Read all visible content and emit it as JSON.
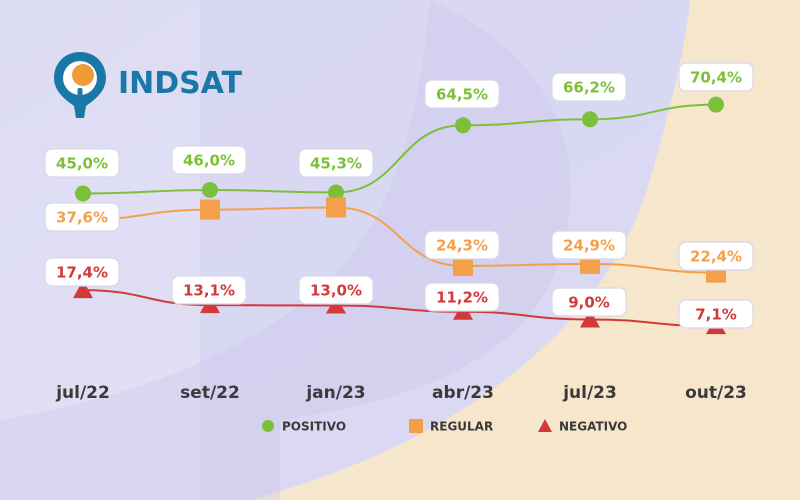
{
  "brand": {
    "name": "INDSAT",
    "logo_icon": "map-pin-icon"
  },
  "colors": {
    "positivo": "#7cc03a",
    "regular": "#f4a04a",
    "negativo": "#d23a3a",
    "tick_text": "#3a3a3a",
    "brand": "#1a78a8"
  },
  "chart_data": {
    "type": "line",
    "title": "",
    "xlabel": "",
    "ylabel": "",
    "categories": [
      "jul/22",
      "set/22",
      "jan/23",
      "abr/23",
      "jul/23",
      "out/23"
    ],
    "series": [
      {
        "name": "POSITIVO",
        "marker": "circle",
        "values": [
          45.0,
          46.0,
          45.3,
          64.5,
          66.2,
          70.4
        ],
        "labels": [
          "45,0%",
          "46,0%",
          "45,3%",
          "64,5%",
          "66,2%",
          "70,4%"
        ]
      },
      {
        "name": "REGULAR",
        "marker": "square",
        "values": [
          37.6,
          40.4,
          41.0,
          24.3,
          24.9,
          22.4
        ],
        "labels": [
          "37,6%",
          "",
          "",
          "24,3%",
          "24,9%",
          "22,4%"
        ]
      },
      {
        "name": "NEGATIVO",
        "marker": "triangle",
        "values": [
          17.4,
          13.1,
          13.0,
          11.2,
          9.0,
          7.1
        ],
        "labels": [
          "17,4%",
          "13,1%",
          "13,0%",
          "11,2%",
          "9,0%",
          "7,1%"
        ]
      }
    ],
    "grid": false,
    "legend_position": "bottom-center"
  }
}
